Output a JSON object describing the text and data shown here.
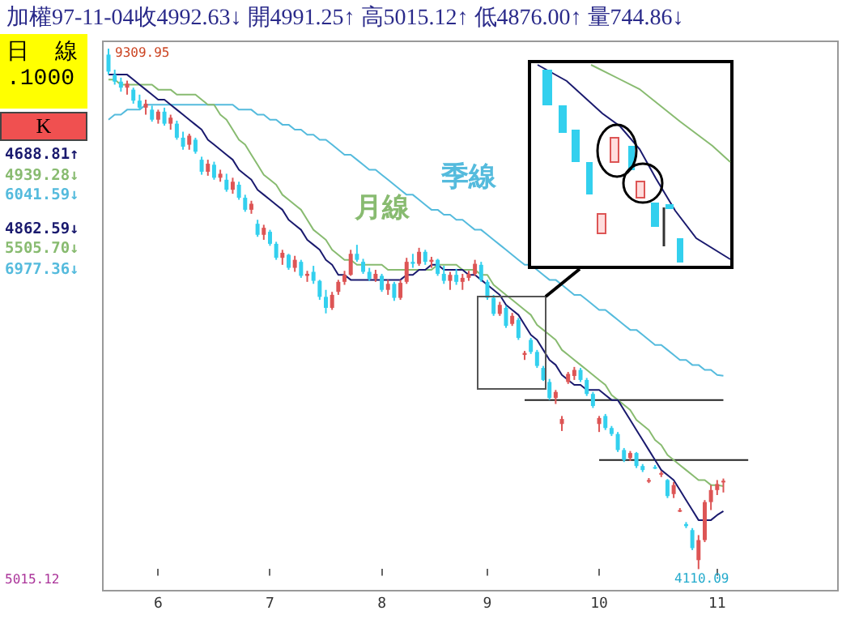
{
  "chart_data": {
    "type": "candlestick",
    "title": "加權97-11-04收4992.63↓ 開4991.25↑ 高5015.12↑ 低4876.00↑ 量744.86↓",
    "categories": [
      null,
      null,
      null,
      null,
      null,
      null,
      null,
      null,
      "6",
      null,
      null,
      null,
      null,
      null,
      null,
      null,
      null,
      null,
      null,
      null,
      null,
      null,
      null,
      null,
      null,
      null,
      "7",
      null,
      null,
      null,
      null,
      null,
      null,
      null,
      null,
      null,
      null,
      null,
      null,
      null,
      null,
      null,
      null,
      null,
      "8",
      null,
      null,
      null,
      null,
      null,
      null,
      null,
      null,
      null,
      null,
      null,
      null,
      null,
      null,
      null,
      null,
      "9",
      null,
      null,
      null,
      null,
      null,
      null,
      null,
      null,
      null,
      null,
      null,
      null,
      null,
      null,
      null,
      null,
      null,
      "10",
      null,
      null,
      null,
      null,
      null,
      null,
      null,
      null,
      null,
      null,
      null,
      null,
      null,
      null,
      null,
      null,
      null,
      null,
      "11",
      null,
      null,
      null,
      null,
      null
    ],
    "colors": [
      "#33d0ee",
      "#33d0ee",
      "#33d0ee",
      "#dd5555",
      "#33d0ee",
      "#33d0ee",
      "#dd5555",
      "#33d0ee",
      "#dd5555",
      "#33d0ee",
      "#dd5555",
      "#33d0ee",
      "#33d0ee",
      "#dd5555",
      "#33d0ee",
      "#33d0ee",
      "#dd5555",
      "#33d0ee",
      "#dd5555",
      "#33d0ee",
      "#dd5555",
      "#33d0ee",
      "#33d0ee",
      "#dd5555",
      "#33d0ee",
      "#dd5555",
      "#33d0ee",
      "#33d0ee",
      "#dd5555",
      "#33d0ee",
      "#dd5555",
      "#33d0ee",
      "#dd5555",
      "#33d0ee",
      "#33d0ee",
      "#33d0ee",
      "#dd5555",
      "#dd5555",
      "#dd5555",
      "#dd5555",
      "#33d0ee",
      "#33d0ee",
      "#33d0ee",
      "#dd5555",
      "#33d0ee",
      "#dd5555",
      "#33d0ee",
      "#dd5555",
      "#dd5555",
      "#33d0ee",
      "#dd5555",
      "#33d0ee",
      "#dd5555",
      "#33d0ee",
      "#33d0ee",
      "#dd5555",
      "#33d0ee",
      "#dd5555",
      "#dd5555",
      "#dd5555",
      "#33d0ee",
      "#33d0ee",
      "#33d0ee",
      "#dd5555",
      "#33d0ee",
      "#dd5555",
      "#33d0ee",
      "#dd5555",
      "#33d0ee",
      "#33d0ee",
      "#33d0ee",
      "#33d0ee",
      "#dd5555",
      "#dd5555",
      "#dd5555",
      "#dd5555",
      "#33d0ee",
      "#33d0ee",
      "#33d0ee",
      "#dd5555",
      "#33d0ee",
      "#33d0ee",
      "#33d0ee",
      "#33d0ee",
      "#dd5555",
      "#33d0ee",
      "#33d0ee",
      "#dd5555",
      "#33d0ee",
      "#dd5555",
      "#33d0ee",
      "#dd5555",
      "#dd5555",
      "#33d0ee",
      "#33d0ee",
      "#dd5555",
      "#dd5555",
      "#dd5555",
      "#dd5555",
      "#dd5555",
      null,
      null,
      null,
      null
    ],
    "ohlc": [
      [
        9250,
        9309.95,
        9050,
        9080
      ],
      [
        9050,
        9100,
        8950,
        8980
      ],
      [
        8980,
        9020,
        8880,
        8920
      ],
      [
        8920,
        8990,
        8850,
        8960
      ],
      [
        8900,
        8920,
        8760,
        8790
      ],
      [
        8790,
        8850,
        8700,
        8720
      ],
      [
        8720,
        8800,
        8650,
        8760
      ],
      [
        8700,
        8740,
        8580,
        8600
      ],
      [
        8600,
        8700,
        8560,
        8680
      ],
      [
        8680,
        8720,
        8540,
        8560
      ],
      [
        8560,
        8650,
        8500,
        8620
      ],
      [
        8560,
        8590,
        8400,
        8420
      ],
      [
        8420,
        8480,
        8300,
        8330
      ],
      [
        8350,
        8460,
        8300,
        8440
      ],
      [
        8400,
        8420,
        8260,
        8280
      ],
      [
        8200,
        8230,
        8050,
        8080
      ],
      [
        8080,
        8200,
        8040,
        8160
      ],
      [
        8150,
        8180,
        8000,
        8020
      ],
      [
        8020,
        8100,
        7980,
        8060
      ],
      [
        8000,
        8060,
        7880,
        7900
      ],
      [
        7900,
        8020,
        7860,
        7980
      ],
      [
        7950,
        7980,
        7800,
        7820
      ],
      [
        7820,
        7850,
        7680,
        7700
      ],
      [
        7700,
        7790,
        7660,
        7760
      ],
      [
        7560,
        7600,
        7430,
        7450
      ],
      [
        7450,
        7550,
        7400,
        7520
      ],
      [
        7480,
        7500,
        7340,
        7360
      ],
      [
        7360,
        7380,
        7200,
        7220
      ],
      [
        7220,
        7300,
        7150,
        7270
      ],
      [
        7250,
        7260,
        7100,
        7120
      ],
      [
        7120,
        7240,
        7080,
        7200
      ],
      [
        7180,
        7200,
        7020,
        7040
      ],
      [
        7040,
        7090,
        6980,
        7060
      ],
      [
        7080,
        7140,
        6960,
        6990
      ],
      [
        6990,
        7000,
        6800,
        6830
      ],
      [
        6830,
        6900,
        6665,
        6720
      ],
      [
        6720,
        6880,
        6700,
        6850
      ],
      [
        6880,
        7000,
        6850,
        6980
      ],
      [
        6980,
        7090,
        6950,
        7050
      ],
      [
        7050,
        7300,
        7040,
        7260
      ],
      [
        7260,
        7350,
        7180,
        7200
      ],
      [
        7180,
        7210,
        7060,
        7080
      ],
      [
        7080,
        7120,
        6990,
        7010
      ],
      [
        7010,
        7100,
        6980,
        7060
      ],
      [
        7040,
        7060,
        6880,
        6900
      ],
      [
        6900,
        7000,
        6850,
        6960
      ],
      [
        6960,
        6980,
        6790,
        6820
      ],
      [
        6820,
        7000,
        6800,
        6970
      ],
      [
        6980,
        7220,
        6960,
        7180
      ],
      [
        7180,
        7260,
        7120,
        7160
      ],
      [
        7160,
        7320,
        7140,
        7280
      ],
      [
        7280,
        7300,
        7150,
        7180
      ],
      [
        7180,
        7230,
        7120,
        7200
      ],
      [
        7200,
        7210,
        7040,
        7060
      ],
      [
        7060,
        7140,
        6960,
        6990
      ],
      [
        6990,
        7080,
        6900,
        7050
      ],
      [
        7050,
        7110,
        6950,
        6980
      ],
      [
        6980,
        7060,
        6900,
        7020
      ],
      [
        7020,
        7090,
        6990,
        7060
      ],
      [
        7060,
        7200,
        7040,
        7160
      ],
      [
        7150,
        7180,
        6980,
        7000
      ],
      [
        6980,
        7000,
        6800,
        6820
      ],
      [
        6820,
        6850,
        6640,
        6660
      ],
      [
        6660,
        6780,
        6640,
        6750
      ],
      [
        6720,
        6740,
        6520,
        6540
      ],
      [
        6560,
        6670,
        6540,
        6640
      ],
      [
        6600,
        6620,
        6400,
        6420
      ],
      [
        6250,
        6290,
        6200,
        6270
      ],
      [
        6400,
        6420,
        6260,
        6280
      ],
      [
        6280,
        6300,
        6120,
        6140
      ],
      [
        6120,
        6140,
        5990,
        6000
      ],
      [
        5980,
        6010,
        5800,
        5820
      ],
      [
        5820,
        5900,
        5760,
        5880
      ],
      [
        5560,
        5640,
        5490,
        5610
      ],
      [
        5980,
        6080,
        5960,
        6060
      ],
      [
        6040,
        6130,
        6000,
        6100
      ],
      [
        6100,
        6120,
        5980,
        6000
      ],
      [
        6000,
        6020,
        5840,
        5860
      ],
      [
        5860,
        5880,
        5720,
        5740
      ],
      [
        5560,
        5640,
        5480,
        5620
      ],
      [
        5640,
        5660,
        5500,
        5520
      ],
      [
        5520,
        5540,
        5440,
        5460
      ],
      [
        5460,
        5480,
        5280,
        5300
      ],
      [
        5300,
        5320,
        5180,
        5200
      ],
      [
        5220,
        5290,
        5190,
        5270
      ],
      [
        5270,
        5280,
        5120,
        5140
      ],
      [
        5140,
        5160,
        5080,
        5100
      ],
      [
        4990,
        5020,
        4970,
        5000
      ],
      [
        5130,
        5150,
        5110,
        5120
      ],
      [
        5060,
        5090,
        5030,
        5070
      ],
      [
        5000,
        5010,
        4820,
        4840
      ],
      [
        4860,
        4980,
        4820,
        4950
      ],
      [
        4700,
        4720,
        4680,
        4700
      ],
      [
        4560,
        4580,
        4520,
        4540
      ],
      [
        4500,
        4520,
        4300,
        4320
      ],
      [
        4200,
        4450,
        4110.09,
        4400
      ],
      [
        4400,
        4800,
        4380,
        4780
      ],
      [
        4780,
        4950,
        4700,
        4900
      ],
      [
        4900,
        5000,
        4850,
        4960
      ],
      [
        4991.25,
        5015.12,
        4876.0,
        4992.63
      ],
      null,
      null,
      null,
      null
    ],
    "series": [
      {
        "type": "line",
        "color": "#1a1a6e",
        "values": [
          9050,
          9050,
          9050,
          9050,
          9000,
          8950,
          8900,
          8850,
          8800,
          8800,
          8750,
          8700,
          8650,
          8600,
          8550,
          8500,
          8400,
          8350,
          8300,
          8250,
          8200,
          8100,
          8050,
          8000,
          7900,
          7850,
          7800,
          7750,
          7700,
          7600,
          7550,
          7500,
          7400,
          7350,
          7300,
          7200,
          7150,
          7050,
          7050,
          7000,
          7000,
          7000,
          7000,
          7000,
          7000,
          7000,
          7000,
          7000,
          7050,
          7050,
          7100,
          7100,
          7150,
          7150,
          7100,
          7100,
          7100,
          7100,
          7050,
          7050,
          7000,
          6950,
          6900,
          6850,
          6750,
          6700,
          6650,
          6550,
          6450,
          6400,
          6300,
          6200,
          6150,
          6050,
          6000,
          5950,
          5950,
          5900,
          5900,
          5900,
          5850,
          5800,
          5800,
          5700,
          5600,
          5500,
          5400,
          5300,
          5200,
          5100,
          5050,
          5000,
          4900,
          4800,
          4700,
          4600,
          4600,
          4600,
          4650,
          4688.81,
          null,
          null,
          null,
          null
        ]
      },
      {
        "type": "line",
        "name": "月線",
        "color": "#88bb70",
        "values": [
          9000,
          9000,
          8950,
          8950,
          8950,
          8950,
          8950,
          8950,
          8900,
          8900,
          8900,
          8850,
          8850,
          8850,
          8850,
          8800,
          8750,
          8750,
          8650,
          8600,
          8500,
          8400,
          8350,
          8250,
          8150,
          8050,
          8000,
          7950,
          7850,
          7800,
          7750,
          7700,
          7600,
          7500,
          7450,
          7400,
          7300,
          7250,
          7200,
          7200,
          7150,
          7150,
          7150,
          7150,
          7150,
          7100,
          7100,
          7100,
          7100,
          7100,
          7100,
          7100,
          7100,
          7150,
          7150,
          7150,
          7150,
          7100,
          7100,
          7100,
          7050,
          7050,
          6950,
          6900,
          6850,
          6800,
          6750,
          6700,
          6650,
          6550,
          6500,
          6450,
          6400,
          6300,
          6250,
          6200,
          6150,
          6100,
          6050,
          6000,
          5950,
          5850,
          5800,
          5750,
          5700,
          5600,
          5550,
          5500,
          5400,
          5350,
          5250,
          5200,
          5150,
          5100,
          5050,
          5000,
          5000,
          4950,
          4950,
          4939.28,
          null,
          null,
          null,
          null
        ]
      },
      {
        "type": "line",
        "name": "季線",
        "color": "#55bbdd",
        "values": [
          8600,
          8650,
          8650,
          8700,
          8700,
          8700,
          8750,
          8750,
          8750,
          8750,
          8750,
          8750,
          8750,
          8750,
          8750,
          8750,
          8750,
          8750,
          8750,
          8750,
          8750,
          8700,
          8700,
          8700,
          8650,
          8650,
          8600,
          8600,
          8550,
          8550,
          8500,
          8500,
          8450,
          8450,
          8400,
          8400,
          8350,
          8300,
          8250,
          8250,
          8200,
          8150,
          8100,
          8100,
          8050,
          8000,
          7950,
          7900,
          7850,
          7850,
          7800,
          7750,
          7700,
          7700,
          7650,
          7650,
          7600,
          7600,
          7550,
          7500,
          7500,
          7450,
          7400,
          7350,
          7300,
          7250,
          7200,
          7150,
          7150,
          7100,
          7050,
          7000,
          7000,
          6950,
          6900,
          6850,
          6850,
          6800,
          6750,
          6700,
          6700,
          6650,
          6600,
          6550,
          6500,
          6500,
          6450,
          6400,
          6350,
          6350,
          6300,
          6250,
          6200,
          6200,
          6150,
          6150,
          6100,
          6100,
          6050,
          6041.59,
          null,
          null,
          null,
          null
        ]
      },
      {
        "type": "line",
        "color": "#222222",
        "values": [
          null,
          null,
          null,
          null,
          null,
          null,
          null,
          null,
          null,
          null,
          null,
          null,
          null,
          null,
          null,
          null,
          null,
          null,
          null,
          null,
          null,
          null,
          null,
          null,
          null,
          null,
          null,
          null,
          null,
          null,
          null,
          null,
          null,
          null,
          null,
          null,
          null,
          null,
          null,
          null,
          null,
          null,
          null,
          null,
          null,
          null,
          null,
          null,
          null,
          null,
          null,
          null,
          null,
          null,
          null,
          null,
          null,
          null,
          null,
          null,
          null,
          null,
          null,
          null,
          null,
          null,
          null,
          5800,
          5800,
          5800,
          5800,
          5800,
          5800,
          5800,
          5800,
          5800,
          5800,
          5800,
          5800,
          5800,
          5800,
          5800,
          5800,
          5800,
          5800,
          5800,
          5800,
          5800,
          5800,
          5800,
          5800,
          5800,
          5800,
          5800,
          5800,
          5800,
          5800,
          5800,
          5800,
          5800,
          null,
          null,
          null,
          null
        ]
      },
      {
        "type": "line",
        "color": "#222222",
        "values": [
          null,
          null,
          null,
          null,
          null,
          null,
          null,
          null,
          null,
          null,
          null,
          null,
          null,
          null,
          null,
          null,
          null,
          null,
          null,
          null,
          null,
          null,
          null,
          null,
          null,
          null,
          null,
          null,
          null,
          null,
          null,
          null,
          null,
          null,
          null,
          null,
          null,
          null,
          null,
          null,
          null,
          null,
          null,
          null,
          null,
          null,
          null,
          null,
          null,
          null,
          null,
          null,
          null,
          null,
          null,
          null,
          null,
          null,
          null,
          null,
          null,
          null,
          null,
          null,
          null,
          null,
          null,
          null,
          null,
          null,
          null,
          null,
          null,
          null,
          null,
          null,
          null,
          null,
          null,
          5200,
          5200,
          5200,
          5200,
          5200,
          5200,
          5200,
          5200,
          5200,
          5200,
          5200,
          5200,
          5200,
          5200,
          5200,
          5200,
          5200,
          5200,
          5200,
          5200,
          5200,
          5200,
          5200,
          5200,
          5200
        ]
      }
    ],
    "tick_labels": "x",
    "legend": false,
    "grid": false,
    "annotations": [
      "日線",
      ".1000",
      "K",
      "4688.81↑",
      "4939.28↓",
      "6041.59↓",
      "4862.59↓",
      "5505.70↓",
      "6977.36↓",
      "5015.12",
      "9309.95",
      "4110.09"
    ]
  }
}
